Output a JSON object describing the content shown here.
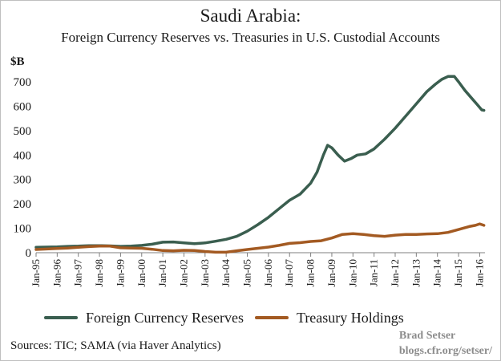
{
  "chart_data": {
    "type": "line",
    "title": "Saudi Arabia:",
    "subtitle": "Foreign Currency Reserves vs. Treasuries in U.S. Custodial Accounts",
    "ylabel": "$B",
    "ylim": [
      0,
      700
    ],
    "xlim": [
      1995.0,
      2016.25
    ],
    "yticks": [
      0,
      100,
      200,
      300,
      400,
      500,
      600,
      700
    ],
    "xtick_labels": [
      "Jan-95",
      "Jan-96",
      "Jan-97",
      "Jan-98",
      "Jan-99",
      "Jan-00",
      "Jan-01",
      "Jan-02",
      "Jan-03",
      "Jan-04",
      "Jan-05",
      "Jan-06",
      "Jan-07",
      "Jan-08",
      "Jan-09",
      "Jan-10",
      "Jan-11",
      "Jan-12",
      "Jan-13",
      "Jan-14",
      "Jan-15",
      "Jan-16"
    ],
    "xtick_values": [
      1995,
      1996,
      1997,
      1998,
      1999,
      2000,
      2001,
      2002,
      2003,
      2004,
      2005,
      2006,
      2007,
      2008,
      2009,
      2010,
      2011,
      2012,
      2013,
      2014,
      2015,
      2016
    ],
    "grid": false,
    "legend_position": "bottom",
    "series": [
      {
        "name": "Foreign Currency Reserves",
        "color": "#3a5e4f",
        "points": [
          [
            1995.0,
            22
          ],
          [
            1995.5,
            23
          ],
          [
            1996.0,
            24
          ],
          [
            1996.5,
            26
          ],
          [
            1997.0,
            27
          ],
          [
            1997.5,
            29
          ],
          [
            1998.0,
            29
          ],
          [
            1998.5,
            28
          ],
          [
            1999.0,
            26
          ],
          [
            1999.5,
            27
          ],
          [
            2000.0,
            30
          ],
          [
            2000.5,
            35
          ],
          [
            2001.0,
            43
          ],
          [
            2001.5,
            44
          ],
          [
            2002.0,
            40
          ],
          [
            2002.5,
            37
          ],
          [
            2003.0,
            40
          ],
          [
            2003.5,
            47
          ],
          [
            2004.0,
            55
          ],
          [
            2004.5,
            67
          ],
          [
            2005.0,
            88
          ],
          [
            2005.5,
            115
          ],
          [
            2006.0,
            145
          ],
          [
            2006.5,
            180
          ],
          [
            2007.0,
            215
          ],
          [
            2007.5,
            240
          ],
          [
            2008.0,
            285
          ],
          [
            2008.3,
            330
          ],
          [
            2008.6,
            400
          ],
          [
            2008.8,
            440
          ],
          [
            2009.0,
            430
          ],
          [
            2009.3,
            400
          ],
          [
            2009.6,
            375
          ],
          [
            2009.9,
            385
          ],
          [
            2010.2,
            400
          ],
          [
            2010.6,
            405
          ],
          [
            2011.0,
            425
          ],
          [
            2011.5,
            465
          ],
          [
            2012.0,
            510
          ],
          [
            2012.5,
            560
          ],
          [
            2013.0,
            610
          ],
          [
            2013.5,
            660
          ],
          [
            2013.9,
            690
          ],
          [
            2014.2,
            710
          ],
          [
            2014.5,
            722
          ],
          [
            2014.8,
            722
          ],
          [
            2015.0,
            700
          ],
          [
            2015.3,
            665
          ],
          [
            2015.6,
            635
          ],
          [
            2015.9,
            605
          ],
          [
            2016.1,
            585
          ],
          [
            2016.2,
            583
          ]
        ]
      },
      {
        "name": "Treasury Holdings",
        "color": "#a35a22",
        "points": [
          [
            1995.0,
            13
          ],
          [
            1995.5,
            15
          ],
          [
            1996.0,
            17
          ],
          [
            1996.5,
            19
          ],
          [
            1997.0,
            22
          ],
          [
            1997.5,
            25
          ],
          [
            1998.0,
            27
          ],
          [
            1998.5,
            27
          ],
          [
            1999.0,
            20
          ],
          [
            1999.5,
            19
          ],
          [
            2000.0,
            18
          ],
          [
            2000.5,
            14
          ],
          [
            2001.0,
            9
          ],
          [
            2001.5,
            8
          ],
          [
            2002.0,
            10
          ],
          [
            2002.5,
            9
          ],
          [
            2003.0,
            5
          ],
          [
            2003.5,
            2
          ],
          [
            2004.0,
            2
          ],
          [
            2004.5,
            8
          ],
          [
            2005.0,
            13
          ],
          [
            2005.5,
            18
          ],
          [
            2006.0,
            23
          ],
          [
            2006.5,
            30
          ],
          [
            2007.0,
            38
          ],
          [
            2007.5,
            41
          ],
          [
            2008.0,
            46
          ],
          [
            2008.5,
            49
          ],
          [
            2009.0,
            60
          ],
          [
            2009.5,
            75
          ],
          [
            2010.0,
            78
          ],
          [
            2010.5,
            75
          ],
          [
            2011.0,
            70
          ],
          [
            2011.5,
            67
          ],
          [
            2012.0,
            72
          ],
          [
            2012.5,
            75
          ],
          [
            2013.0,
            75
          ],
          [
            2013.5,
            77
          ],
          [
            2014.0,
            78
          ],
          [
            2014.5,
            83
          ],
          [
            2015.0,
            95
          ],
          [
            2015.5,
            107
          ],
          [
            2015.8,
            112
          ],
          [
            2016.0,
            118
          ],
          [
            2016.2,
            112
          ]
        ]
      }
    ],
    "sources": "Sources: TIC; SAMA (via Haver Analytics)",
    "credit_name": "Brad Setser",
    "credit_url": "blogs.cfr.org/setser/"
  }
}
